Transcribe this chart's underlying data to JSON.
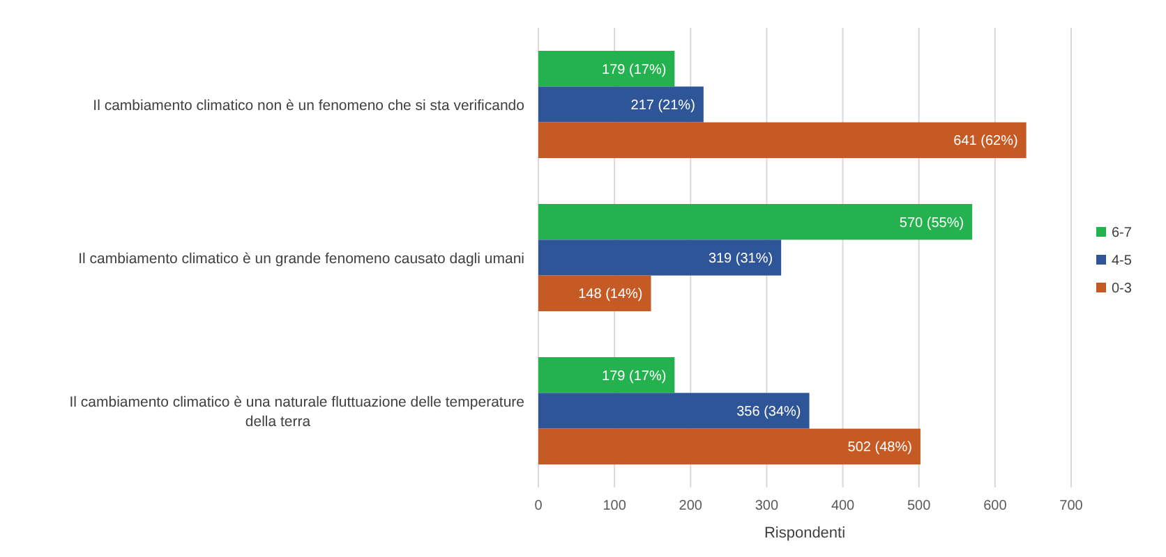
{
  "chart_data": {
    "type": "bar",
    "orientation": "horizontal",
    "xlabel": "Rispondenti",
    "categories": [
      "Il cambiamento climatico non è un fenomeno che si sta verificando",
      "Il cambiamento climatico è un grande fenomeno causato dagli umani",
      "Il cambiamento climatico è una naturale fluttuazione delle temperature della terra"
    ],
    "series": [
      {
        "name": "6-7",
        "color": "#23b24e",
        "values": [
          179,
          570,
          179
        ],
        "value_labels": [
          "179 (17%)",
          "570 (55%)",
          "179 (17%)"
        ]
      },
      {
        "name": "4-5",
        "color": "#2d5597",
        "values": [
          217,
          319,
          356
        ],
        "value_labels": [
          "217 (21%)",
          "319 (31%)",
          "356 (34%)"
        ]
      },
      {
        "name": "0-3",
        "color": "#c55a24",
        "values": [
          641,
          148,
          502
        ],
        "value_labels": [
          "641 (62%)",
          "148 (14%)",
          "502 (48%)"
        ]
      }
    ],
    "xlim": [
      0,
      700
    ],
    "xticks": [
      0,
      100,
      200,
      300,
      400,
      500,
      600,
      700
    ],
    "grid": "x",
    "legend": "right"
  }
}
